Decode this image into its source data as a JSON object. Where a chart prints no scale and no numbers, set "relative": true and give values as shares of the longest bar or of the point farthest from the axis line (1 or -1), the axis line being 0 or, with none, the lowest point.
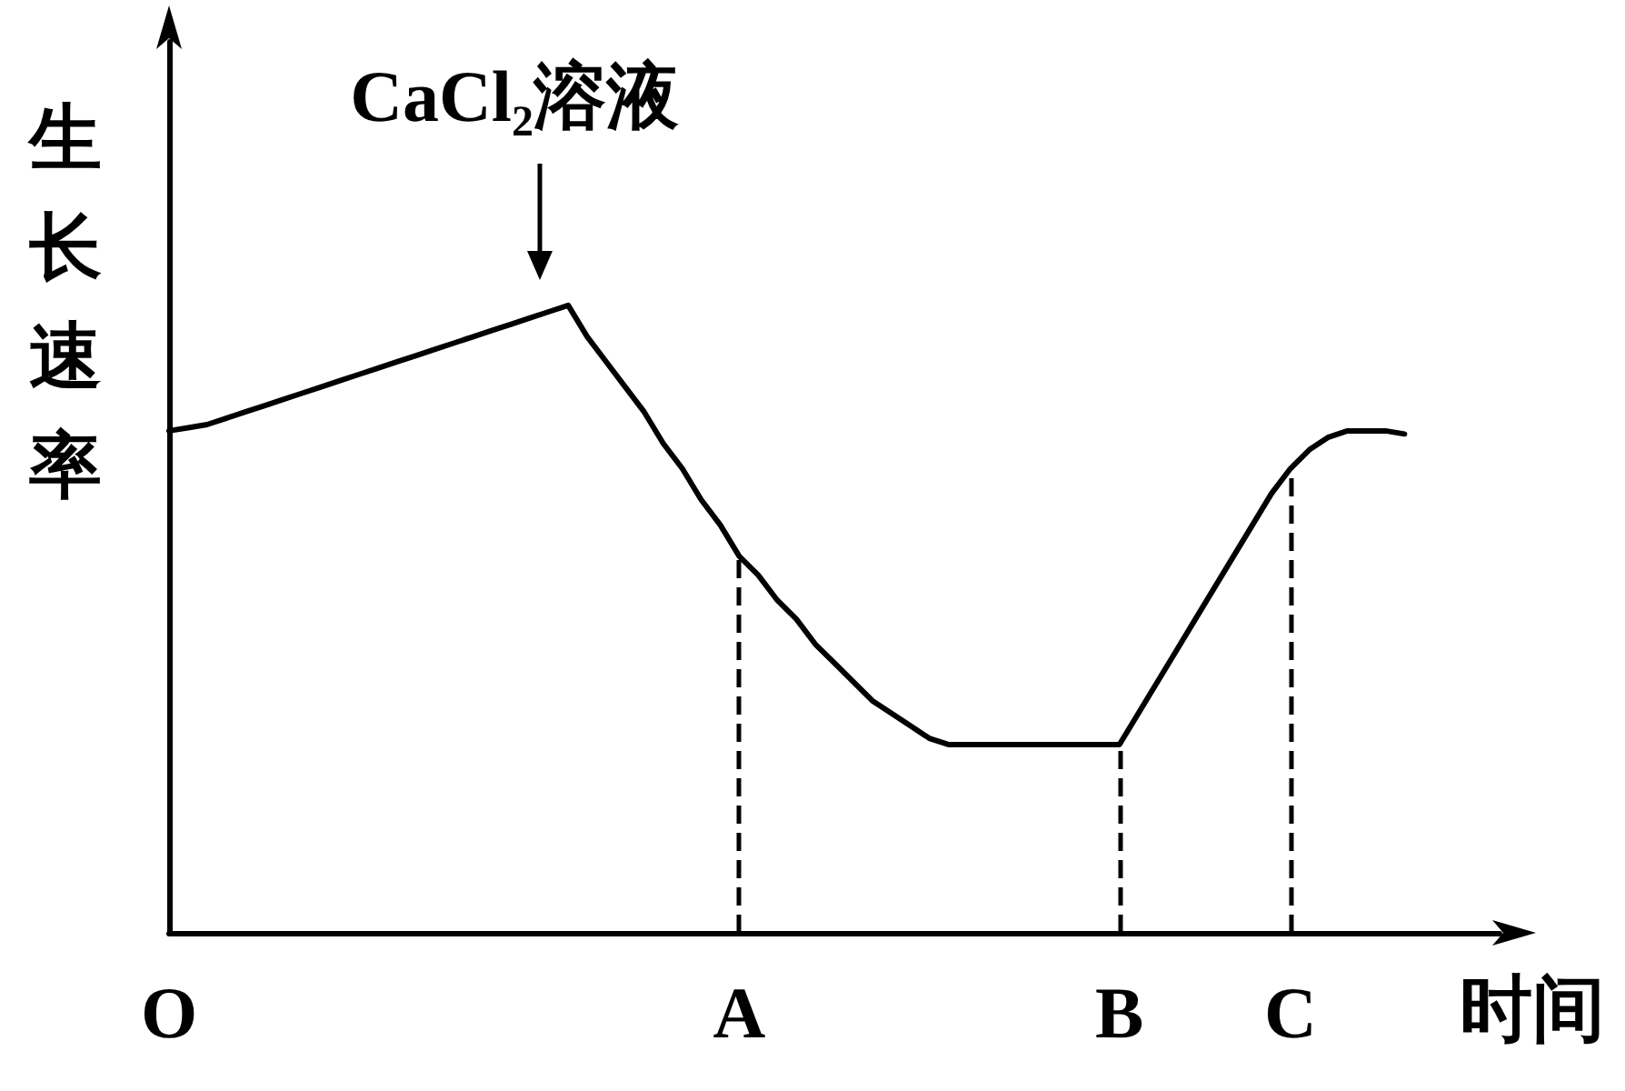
{
  "chart_data": {
    "type": "line",
    "relative": true,
    "xlabel": "时间",
    "ylabel": "生长速率",
    "categories": [
      "O",
      null,
      null,
      null,
      null,
      null,
      null,
      null,
      null,
      null,
      null,
      null,
      null,
      null,
      null,
      null,
      null,
      null,
      null,
      null,
      null,
      null,
      null,
      null,
      null,
      null,
      null,
      null,
      null,
      null,
      "A",
      null,
      null,
      null,
      null,
      null,
      null,
      null,
      null,
      null,
      null,
      null,
      null,
      null,
      null,
      null,
      null,
      null,
      null,
      null,
      "B",
      null,
      null,
      null,
      null,
      null,
      null,
      null,
      null,
      "C",
      null,
      null,
      null,
      null,
      null,
      null,
      null,
      null,
      null,
      null,
      null
    ],
    "values": [
      0.8,
      0.805,
      0.81,
      0.82,
      0.83,
      0.84,
      0.85,
      0.86,
      0.87,
      0.88,
      0.89,
      0.9,
      0.91,
      0.92,
      0.93,
      0.94,
      0.95,
      0.96,
      0.97,
      0.98,
      0.99,
      1,
      0.95,
      0.91,
      0.87,
      0.83,
      0.78,
      0.74,
      0.69,
      0.65,
      0.6,
      0.57,
      0.53,
      0.5,
      0.46,
      0.43,
      0.4,
      0.37,
      0.35,
      0.33,
      0.31,
      0.3,
      0.3,
      0.3,
      0.3,
      0.3,
      0.3,
      0.3,
      0.3,
      0.3,
      0.3,
      0.35,
      0.4,
      0.45,
      0.5,
      0.55,
      0.6,
      0.65,
      0.7,
      0.74,
      0.77,
      0.79,
      0.8,
      0.8,
      0.8,
      0.795,
      null,
      null,
      null,
      null,
      null
    ],
    "color": "#000000",
    "marker": "none",
    "line_style": "solid",
    "grid": false,
    "tick_labels": "x",
    "ref_lines": [
      {
        "axis": "x",
        "value": "A",
        "label": null,
        "line_style": "dashed"
      },
      {
        "axis": "x",
        "value": "B",
        "label": null,
        "line_style": "dashed"
      },
      {
        "axis": "x",
        "value": "C",
        "label": null,
        "line_style": "dashed"
      }
    ],
    "annotations": [
      "CaCl₂溶液"
    ]
  }
}
